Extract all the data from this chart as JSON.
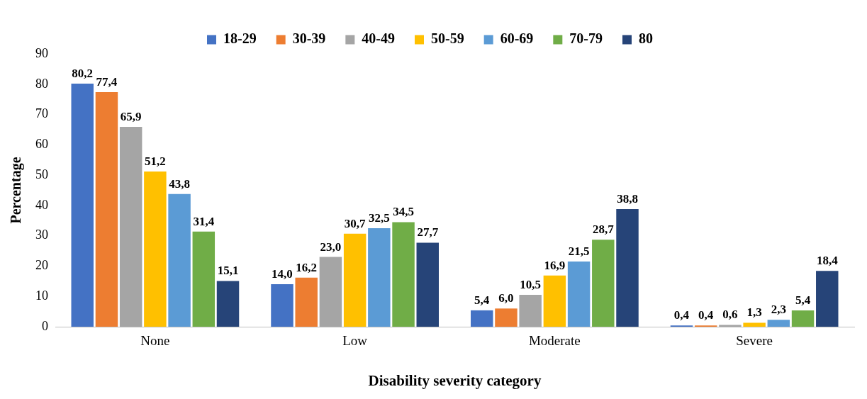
{
  "chart_data": {
    "type": "bar",
    "xlabel": "Disability severity category",
    "ylabel": "Percentage",
    "categories": [
      "None",
      "Low",
      "Moderate",
      "Severe"
    ],
    "series": [
      {
        "name": "18-29",
        "color": "#4472c4",
        "values": [
          80.2,
          14.0,
          5.4,
          0.4
        ],
        "value_labels": [
          "80,2",
          "14,0",
          "5,4",
          "0,4"
        ]
      },
      {
        "name": "30-39",
        "color": "#ed7d31",
        "values": [
          77.4,
          16.2,
          6.0,
          0.4
        ],
        "value_labels": [
          "77,4",
          "16,2",
          "6,0",
          "0,4"
        ]
      },
      {
        "name": "40-49",
        "color": "#a5a5a5",
        "values": [
          65.9,
          23.0,
          10.5,
          0.6
        ],
        "value_labels": [
          "65,9",
          "23,0",
          "10,5",
          "0,6"
        ]
      },
      {
        "name": "50-59",
        "color": "#ffc000",
        "values": [
          51.2,
          30.7,
          16.9,
          1.3
        ],
        "value_labels": [
          "51,2",
          "30,7",
          "16,9",
          "1,3"
        ]
      },
      {
        "name": "60-69",
        "color": "#5b9bd5",
        "values": [
          43.8,
          32.5,
          21.5,
          2.3
        ],
        "value_labels": [
          "43,8",
          "32,5",
          "21,5",
          "2,3"
        ]
      },
      {
        "name": "70-79",
        "color": "#70ad47",
        "values": [
          31.4,
          34.5,
          28.7,
          5.4
        ],
        "value_labels": [
          "31,4",
          "34,5",
          "28,7",
          "5,4"
        ]
      },
      {
        "name": "80",
        "color": "#264478",
        "values": [
          15.1,
          27.7,
          38.8,
          18.4
        ],
        "value_labels": [
          "15,1",
          "27,7",
          "38,8",
          "18,4"
        ]
      }
    ],
    "ylim": [
      0,
      90
    ],
    "yticks": [
      0,
      10,
      20,
      30,
      40,
      50,
      60,
      70,
      80,
      90
    ],
    "grid": false,
    "legend": "top"
  }
}
